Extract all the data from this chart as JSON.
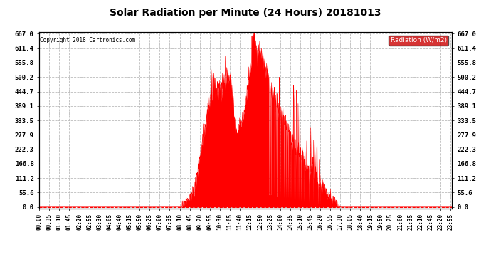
{
  "title": "Solar Radiation per Minute (24 Hours) 20181013",
  "copyright_text": "Copyright 2018 Cartronics.com",
  "legend_label": "Radiation (W/m2)",
  "yticks": [
    0.0,
    55.6,
    111.2,
    166.8,
    222.3,
    277.9,
    333.5,
    389.1,
    444.7,
    500.2,
    555.8,
    611.4,
    667.0
  ],
  "ymax": 667.0,
  "fill_color": "#ff0000",
  "line_color": "#ff0000",
  "background_color": "#ffffff",
  "grid_color": "#bbbbbb",
  "legend_bg": "#cc0000",
  "legend_text_color": "#ffffff",
  "copyright_color": "#000000",
  "title_color": "#000000",
  "minutes_per_day": 1440
}
